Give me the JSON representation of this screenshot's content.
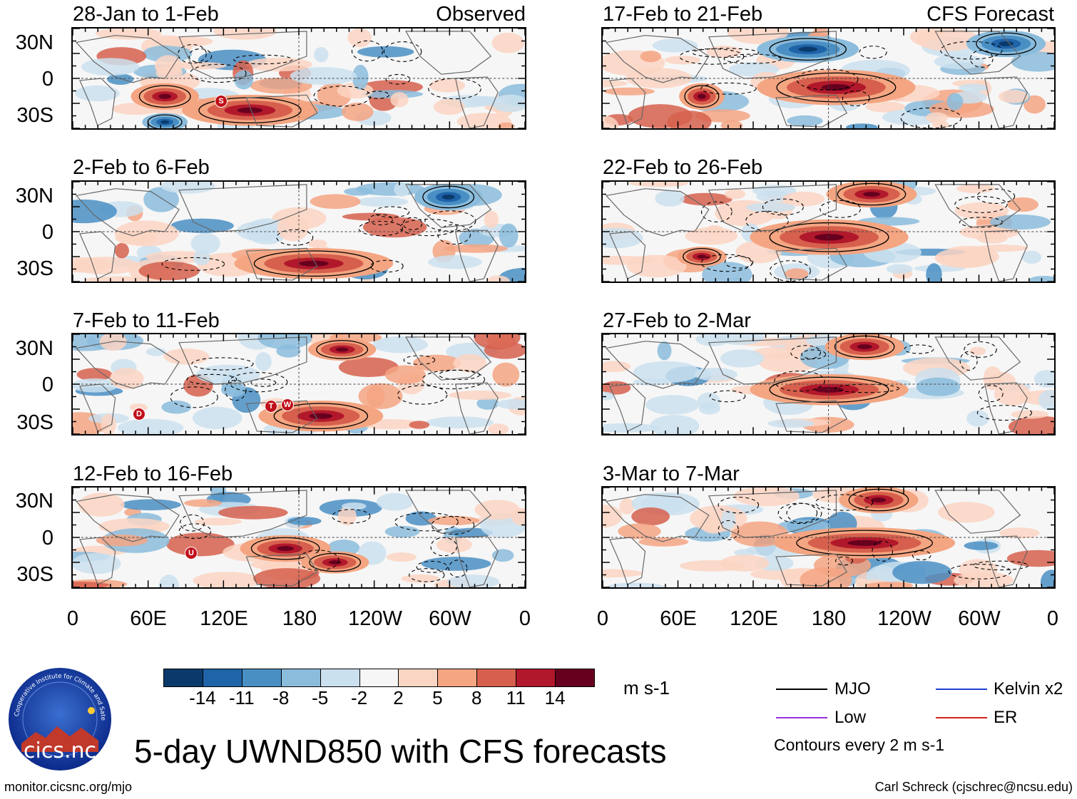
{
  "colors": {
    "neg": [
      "#0a3a6b",
      "#1f63a8",
      "#4a8fc4",
      "#8bbcdc",
      "#cbe0ef"
    ],
    "neutral": "#f6f6f6",
    "pos": [
      "#fbd5c3",
      "#f4a582",
      "#d6604d",
      "#b2182b",
      "#67001f"
    ],
    "contour": "#000000",
    "mjo": "#000000",
    "low": "#9b30d9",
    "kelvin": "#1f3fd6",
    "er": "#d62020"
  },
  "header": {
    "observed_label": "Observed",
    "forecast_label": "CFS Forecast"
  },
  "panels": {
    "left": [
      {
        "title": "28-Jan to 1-Feb",
        "markers": [
          "S"
        ]
      },
      {
        "title": "2-Feb to 6-Feb",
        "markers": []
      },
      {
        "title": "7-Feb to 11-Feb",
        "markers": [
          "D",
          "T",
          "W"
        ]
      },
      {
        "title": "12-Feb to 16-Feb",
        "markers": [
          "U"
        ]
      }
    ],
    "right": [
      {
        "title": "17-Feb to 21-Feb"
      },
      {
        "title": "22-Feb to 26-Feb"
      },
      {
        "title": "27-Feb to 2-Mar"
      },
      {
        "title": "3-Mar to 7-Mar"
      }
    ]
  },
  "axes": {
    "lat_labels": [
      "30N",
      "0",
      "30S"
    ],
    "lon_labels": [
      "0",
      "60E",
      "120E",
      "180",
      "120W",
      "60W",
      "0"
    ]
  },
  "colorbar": {
    "labels": [
      "-14",
      "-11",
      "-8",
      "-5",
      "-2",
      "2",
      "5",
      "8",
      "11",
      "14"
    ],
    "units": "m s-1"
  },
  "legend": {
    "mjo": "MJO",
    "kelvin": "Kelvin x2",
    "low": "Low",
    "er": "ER",
    "note": "Contours every 2 m s-1"
  },
  "logo": {
    "text": "cics.nc",
    "ring_text": "Cooperative Institute for Climate and Satellites"
  },
  "title": "5-day UWND850 with CFS forecasts",
  "footer": {
    "url": "monitor.cicsnc.org/mjo",
    "credit": "Carl Schreck (cjschrec@ncsu.edu)"
  }
}
